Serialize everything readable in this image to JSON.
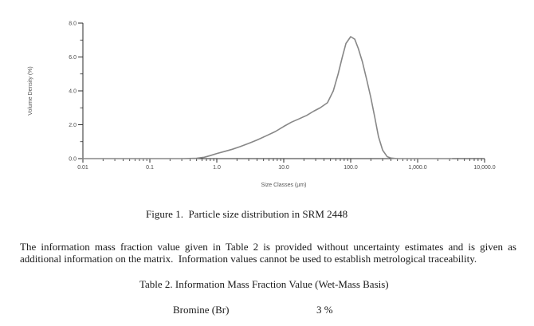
{
  "figure": {
    "caption": "Figure 1.  Particle size distribution in SRM 2448"
  },
  "paragraph": {
    "line1": "The information mass fraction value given in Table 2 is provided without uncertainty estimates and is given as",
    "line2": "additional information on the matrix.  Information values cannot be used to establish metrological traceability."
  },
  "table2": {
    "title": "Table 2. Information Mass Fraction Value (Wet-Mass Basis)",
    "rows": [
      {
        "label": "Bromine (Br)",
        "value": "3 %"
      }
    ]
  },
  "chart_data": {
    "type": "line",
    "title": "",
    "xlabel": "Size Classes (µm)",
    "ylabel": "Volume Density (%)",
    "x_scale": "log",
    "xlim": [
      0.01,
      10000
    ],
    "ylim": [
      0,
      8
    ],
    "grid": false,
    "legend_position": "none",
    "x_ticks": [
      0.01,
      0.1,
      1,
      10,
      100,
      1000,
      10000
    ],
    "x_tick_labels": [
      "0.01",
      "0.1",
      "1.0",
      "10.0",
      "100.0",
      "1,000.0",
      "10,000.0"
    ],
    "y_ticks": [
      0,
      2,
      4,
      6,
      8
    ],
    "y_tick_labels": [
      "0.0",
      "2.0",
      "4.0",
      "6.0",
      "8.0"
    ],
    "y_minor_ticks": [
      1,
      3,
      5,
      7
    ],
    "axis_color": "#2a2a2a",
    "tick_label_color": "#4a4a4a",
    "line_color": "#878787",
    "series": [
      {
        "name": "volume-density",
        "x": [
          0.01,
          0.1,
          0.3,
          0.5,
          0.65,
          0.8,
          1.0,
          1.3,
          1.7,
          2.2,
          3.0,
          4.0,
          5.5,
          7.5,
          10,
          13,
          17,
          22,
          28,
          35,
          45,
          55,
          65,
          75,
          85,
          100,
          115,
          130,
          150,
          175,
          200,
          230,
          260,
          300,
          350,
          400,
          500,
          700,
          1000,
          2000,
          3200
        ],
        "y": [
          0,
          0,
          0,
          0.02,
          0.08,
          0.18,
          0.3,
          0.42,
          0.55,
          0.7,
          0.9,
          1.1,
          1.35,
          1.6,
          1.9,
          2.15,
          2.35,
          2.55,
          2.8,
          3.0,
          3.3,
          4.0,
          5.0,
          6.0,
          6.8,
          7.2,
          7.05,
          6.5,
          5.7,
          4.6,
          3.6,
          2.4,
          1.3,
          0.5,
          0.12,
          0.03,
          0,
          0,
          0,
          0,
          0
        ]
      }
    ]
  }
}
